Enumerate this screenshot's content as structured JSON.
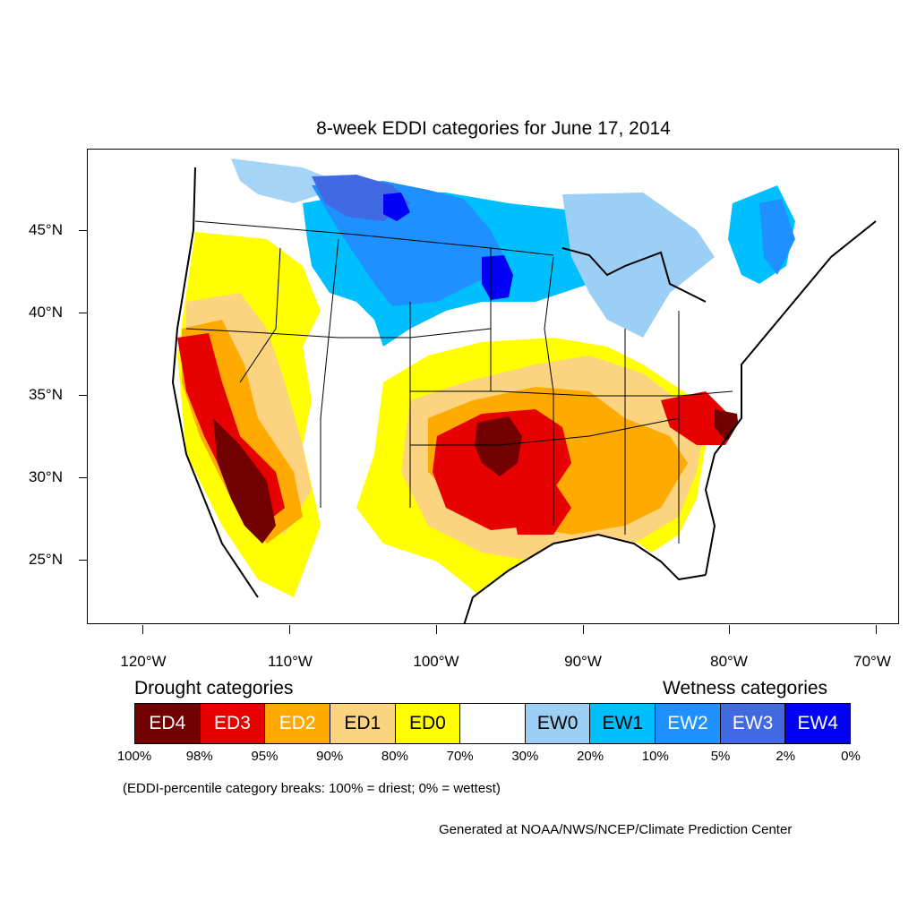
{
  "title": "8-week EDDI categories for June 17, 2014",
  "map": {
    "type": "map",
    "projection": "Lambert conformal (CONUS)",
    "lat_labels": [
      "45°N",
      "40°N",
      "35°N",
      "30°N",
      "25°N"
    ],
    "lon_labels": [
      "120°W",
      "110°W",
      "100°W",
      "90°W",
      "80°W",
      "70°W"
    ],
    "features": [
      {
        "name": "severe drought core",
        "category": "ED4",
        "region": "Oklahoma / north Texas"
      },
      {
        "name": "southern plains drought",
        "category": "ED3",
        "region": "Texas, Oklahoma, Kansas, Arkansas"
      },
      {
        "name": "west coast drought",
        "category": "ED4",
        "region": "California coast, Baja California"
      },
      {
        "name": "carolinas drought",
        "category": "ED3",
        "region": "North Carolina / Virginia"
      },
      {
        "name": "northern plains wetness",
        "category": "EW3",
        "region": "Montana, Dakotas, Minnesota"
      },
      {
        "name": "northeast wetness",
        "category": "EW2",
        "region": "Maine / Quebec"
      }
    ]
  },
  "legend": {
    "drought_heading": "Drought categories",
    "wetness_heading": "Wetness categories",
    "categories": [
      {
        "label": "ED4",
        "color": "#730000",
        "text_color": "#ffffff"
      },
      {
        "label": "ED3",
        "color": "#e60000",
        "text_color": "#ffffff"
      },
      {
        "label": "ED2",
        "color": "#ffaa00",
        "text_color": "#ffffff"
      },
      {
        "label": "ED1",
        "color": "#fcd37f",
        "text_color": "#000000"
      },
      {
        "label": "ED0",
        "color": "#ffff00",
        "text_color": "#000000"
      },
      {
        "label": "",
        "color": "#ffffff",
        "text_color": "#000000"
      },
      {
        "label": "EW0",
        "color": "#9bcff5",
        "text_color": "#000000"
      },
      {
        "label": "EW1",
        "color": "#00bfff",
        "text_color": "#000000"
      },
      {
        "label": "EW2",
        "color": "#1e90ff",
        "text_color": "#ffffff"
      },
      {
        "label": "EW3",
        "color": "#4169e1",
        "text_color": "#ffffff"
      },
      {
        "label": "EW4",
        "color": "#0000f5",
        "text_color": "#ffffff"
      }
    ],
    "percentiles": [
      "100%",
      "98%",
      "95%",
      "90%",
      "80%",
      "70%",
      "30%",
      "20%",
      "10%",
      "5%",
      "2%",
      "0%"
    ],
    "note": "(EDDI-percentile category breaks: 100% = driest; 0% = wettest)"
  },
  "credit": "Generated at NOAA/NWS/NCEP/Climate Prediction Center"
}
